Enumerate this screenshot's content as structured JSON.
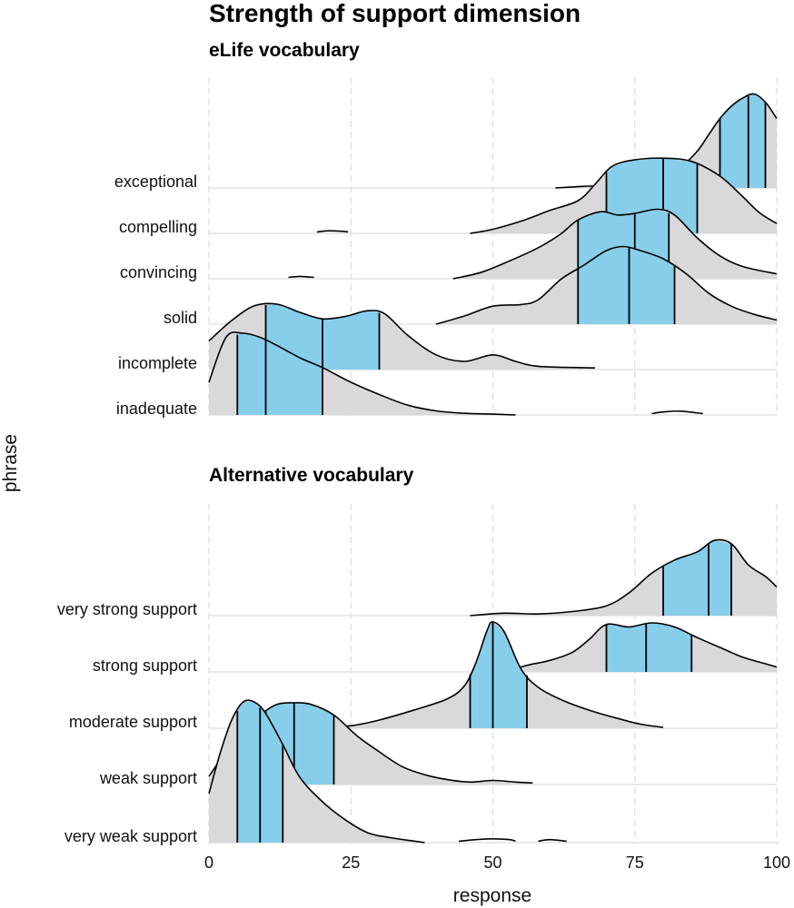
{
  "chart_data": {
    "type": "ridgeline",
    "title": "Strength of support dimension",
    "xlabel": "response",
    "ylabel": "phrase",
    "xlim": [
      0,
      100
    ],
    "xticks": [
      0,
      25,
      50,
      75,
      100
    ],
    "fill_color": "#d9d9d9",
    "iqr_color": "#87ceeb",
    "line_color": "#000000",
    "grid_color": "#dddddd",
    "panels": [
      {
        "subtitle": "eLife vocabulary",
        "rows": [
          {
            "label": "exceptional",
            "q1": 90,
            "median": 95,
            "q3": 98,
            "density": [
              [
                61,
                0
              ],
              [
                66,
                0.02
              ],
              [
                70,
                0.03
              ],
              [
                75,
                0.06
              ],
              [
                80,
                0.14
              ],
              [
                83,
                0.25
              ],
              [
                86,
                0.45
              ],
              [
                88,
                0.65
              ],
              [
                90,
                0.85
              ],
              [
                92,
                1.0
              ],
              [
                94,
                1.1
              ],
              [
                96,
                1.15
              ],
              [
                98,
                1.05
              ],
              [
                100,
                0.85
              ]
            ]
          },
          {
            "label": "compelling",
            "q1": 70,
            "median": 80,
            "q3": 86,
            "density": [
              [
                46,
                0
              ],
              [
                50,
                0.05
              ],
              [
                55,
                0.15
              ],
              [
                60,
                0.28
              ],
              [
                65,
                0.4
              ],
              [
                68,
                0.6
              ],
              [
                71,
                0.82
              ],
              [
                75,
                0.9
              ],
              [
                80,
                0.92
              ],
              [
                85,
                0.88
              ],
              [
                90,
                0.7
              ],
              [
                94,
                0.45
              ],
              [
                97,
                0.25
              ],
              [
                100,
                0.12
              ]
            ]
          },
          {
            "label": "convincing",
            "q1": 65,
            "median": 75,
            "q3": 81,
            "density": [
              [
                43,
                0
              ],
              [
                48,
                0.08
              ],
              [
                53,
                0.22
              ],
              [
                58,
                0.38
              ],
              [
                62,
                0.55
              ],
              [
                65,
                0.72
              ],
              [
                69,
                0.82
              ],
              [
                72,
                0.78
              ],
              [
                75,
                0.8
              ],
              [
                79,
                0.85
              ],
              [
                82,
                0.78
              ],
              [
                86,
                0.5
              ],
              [
                90,
                0.28
              ],
              [
                94,
                0.15
              ],
              [
                100,
                0.06
              ]
            ]
          },
          {
            "label": "solid",
            "q1": 65,
            "median": 74,
            "q3": 82,
            "density": [
              [
                40,
                0
              ],
              [
                45,
                0.1
              ],
              [
                50,
                0.22
              ],
              [
                55,
                0.24
              ],
              [
                58,
                0.3
              ],
              [
                62,
                0.55
              ],
              [
                66,
                0.72
              ],
              [
                70,
                0.9
              ],
              [
                73,
                0.95
              ],
              [
                76,
                0.9
              ],
              [
                80,
                0.8
              ],
              [
                84,
                0.62
              ],
              [
                88,
                0.38
              ],
              [
                92,
                0.22
              ],
              [
                96,
                0.12
              ],
              [
                100,
                0.05
              ]
            ]
          },
          {
            "label": "incomplete",
            "q1": 10,
            "median": 20,
            "q3": 30,
            "density": [
              [
                0,
                0.35
              ],
              [
                4,
                0.6
              ],
              [
                8,
                0.78
              ],
              [
                12,
                0.8
              ],
              [
                16,
                0.7
              ],
              [
                20,
                0.62
              ],
              [
                24,
                0.65
              ],
              [
                28,
                0.72
              ],
              [
                31,
                0.68
              ],
              [
                35,
                0.42
              ],
              [
                40,
                0.18
              ],
              [
                45,
                0.1
              ],
              [
                50,
                0.18
              ],
              [
                54,
                0.1
              ],
              [
                58,
                0.04
              ],
              [
                68,
                0.02
              ]
            ]
          },
          {
            "label": "inadequate",
            "q1": 5,
            "median": 10,
            "q3": 20,
            "density": [
              [
                0,
                0.4
              ],
              [
                3,
                0.95
              ],
              [
                6,
                1.0
              ],
              [
                9,
                0.95
              ],
              [
                12,
                0.85
              ],
              [
                16,
                0.7
              ],
              [
                20,
                0.58
              ],
              [
                25,
                0.4
              ],
              [
                30,
                0.25
              ],
              [
                35,
                0.12
              ],
              [
                40,
                0.05
              ],
              [
                45,
                0.02
              ],
              [
                50,
                0.01
              ],
              [
                54,
                0.0
              ]
            ]
          }
        ],
        "fragments": [
          {
            "row": "compelling",
            "points": [
              [
                19,
                0
              ],
              [
                21,
                0.015
              ],
              [
                23,
                0.01
              ],
              [
                24.5,
                0
              ]
            ]
          },
          {
            "row": "convincing",
            "points": [
              [
                14,
                0
              ],
              [
                16,
                0.012
              ],
              [
                18.5,
                0
              ]
            ]
          },
          {
            "row": "inadequate",
            "points": [
              [
                78,
                0
              ],
              [
                80,
                0.02
              ],
              [
                83,
                0.03
              ],
              [
                87,
                0
              ]
            ]
          }
        ]
      },
      {
        "subtitle": "Alternative vocabulary",
        "rows": [
          {
            "label": "very strong support",
            "q1": 80,
            "median": 88,
            "q3": 92,
            "density": [
              [
                46,
                0
              ],
              [
                52,
                0.03
              ],
              [
                58,
                0.02
              ],
              [
                64,
                0.05
              ],
              [
                70,
                0.12
              ],
              [
                74,
                0.28
              ],
              [
                78,
                0.52
              ],
              [
                82,
                0.68
              ],
              [
                86,
                0.78
              ],
              [
                89,
                0.92
              ],
              [
                92,
                0.88
              ],
              [
                95,
                0.62
              ],
              [
                98,
                0.48
              ],
              [
                100,
                0.35
              ]
            ]
          },
          {
            "label": "strong support",
            "q1": 70,
            "median": 77,
            "q3": 85,
            "density": [
              [
                52,
                0
              ],
              [
                56,
                0.08
              ],
              [
                60,
                0.14
              ],
              [
                64,
                0.24
              ],
              [
                67,
                0.4
              ],
              [
                70,
                0.58
              ],
              [
                74,
                0.55
              ],
              [
                78,
                0.6
              ],
              [
                82,
                0.55
              ],
              [
                86,
                0.42
              ],
              [
                90,
                0.3
              ],
              [
                94,
                0.18
              ],
              [
                98,
                0.1
              ],
              [
                100,
                0.06
              ]
            ]
          },
          {
            "label": "moderate support",
            "q1": 46,
            "median": 50,
            "q3": 56,
            "density": [
              [
                12,
                0
              ],
              [
                20,
                0.02
              ],
              [
                25,
                0.03
              ],
              [
                30,
                0.1
              ],
              [
                36,
                0.22
              ],
              [
                42,
                0.36
              ],
              [
                45,
                0.52
              ],
              [
                47,
                0.8
              ],
              [
                49,
                1.2
              ],
              [
                50,
                1.3
              ],
              [
                52,
                1.18
              ],
              [
                55,
                0.72
              ],
              [
                58,
                0.5
              ],
              [
                62,
                0.35
              ],
              [
                67,
                0.22
              ],
              [
                72,
                0.12
              ],
              [
                76,
                0.05
              ],
              [
                80,
                0.01
              ]
            ]
          },
          {
            "label": "weak support",
            "q1": 10,
            "median": 15,
            "q3": 22,
            "density": [
              [
                0,
                0.1
              ],
              [
                3,
                0.4
              ],
              [
                6,
                0.65
              ],
              [
                9,
                0.85
              ],
              [
                12,
                0.98
              ],
              [
                15,
                1.0
              ],
              [
                18,
                0.98
              ],
              [
                22,
                0.85
              ],
              [
                26,
                0.6
              ],
              [
                30,
                0.4
              ],
              [
                34,
                0.22
              ],
              [
                38,
                0.12
              ],
              [
                42,
                0.06
              ],
              [
                46,
                0.03
              ],
              [
                50,
                0.05
              ],
              [
                54,
                0.03
              ],
              [
                57,
                0.02
              ]
            ]
          },
          {
            "label": "very weak support",
            "q1": 5,
            "median": 9,
            "q3": 13,
            "density": [
              [
                0,
                0.6
              ],
              [
                2,
                1.1
              ],
              [
                4,
                1.5
              ],
              [
                6,
                1.72
              ],
              [
                8,
                1.72
              ],
              [
                10,
                1.58
              ],
              [
                13,
                1.2
              ],
              [
                16,
                0.8
              ],
              [
                20,
                0.5
              ],
              [
                24,
                0.28
              ],
              [
                28,
                0.12
              ],
              [
                32,
                0.06
              ],
              [
                36,
                0.02
              ],
              [
                38,
                0.0
              ]
            ]
          }
        ],
        "fragments": [
          {
            "row": "very weak support",
            "points": [
              [
                44,
                0
              ],
              [
                47,
                0.02
              ],
              [
                50,
                0.03
              ],
              [
                53,
                0.02
              ],
              [
                54,
                0
              ]
            ]
          },
          {
            "row": "very weak support",
            "points": [
              [
                58,
                0
              ],
              [
                60,
                0.02
              ],
              [
                63,
                0
              ]
            ]
          }
        ]
      }
    ]
  }
}
